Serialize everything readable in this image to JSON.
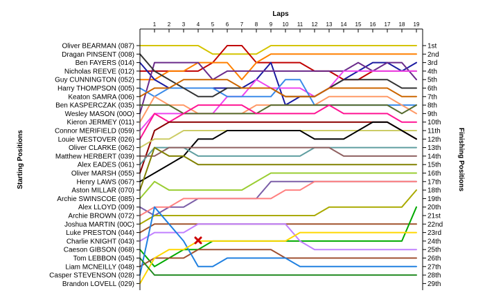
{
  "chart_data": {
    "type": "line",
    "title": "",
    "xlabel": "Laps",
    "ylabel_left": "Starting Positions",
    "ylabel_right": "Finishing Positions",
    "laps": [
      1,
      2,
      3,
      4,
      5,
      6,
      7,
      8,
      9,
      10,
      11,
      12,
      13,
      14,
      15,
      16,
      17,
      18,
      19
    ],
    "starting_grid": [
      "Oliver BEARMAN (087)",
      "Dragan PINSENT (008)",
      "Ben FAYERS (014)",
      "Nicholas REEVE (012)",
      "Guy CUNNINGTON (052)",
      "Harry THOMPSON (005)",
      "Keaton SAMRA (006)",
      "Ben KASPERCZAK (035)",
      "Wesley MASON (00O)",
      "Kieron JERMEY (011)",
      "Connor MERIFIELD (059)",
      "Louie WESTOVER (026)",
      "Oliver CLARKE (062)",
      "Matthew HERBERT (039)",
      "Alex EADES (061)",
      "Oliver MARSH (055)",
      "Henry LAWS (067)",
      "Aston MILLAR (070)",
      "Archie SWINSCOE (085)",
      "Alex LLOYD (009)",
      "Archie BROWN (072)",
      "Joshua MARTIN (00C)",
      "Luke PRESTON (044)",
      "Charlie KNIGHT (043)",
      "Caeson GIBSON (068)",
      "Tom LEBBON (045)",
      "Liam MCNEILLY (048)",
      "Casper STEVENSON (028)",
      "Brandon LOVELL (029)"
    ],
    "finishing_positions": [
      "1st",
      "2nd",
      "3rd",
      "4th",
      "5th",
      "6th",
      "7th",
      "8th",
      "9th",
      "10th",
      "11th",
      "12th",
      "13th",
      "14th",
      "15th",
      "16th",
      "17th",
      "18th",
      "19th",
      "20th",
      "21st",
      "22nd",
      "23rd",
      "24th",
      "25th",
      "26th",
      "27th",
      "28th",
      "29th"
    ],
    "retirement_marker": {
      "lap": 4,
      "position": 24
    },
    "series": [
      {
        "color": "#d4c400",
        "positions": [
          1,
          1,
          1,
          1,
          1,
          2,
          2,
          2,
          2,
          1,
          1,
          1,
          1,
          1,
          1,
          1,
          1,
          1,
          1,
          1
        ]
      },
      {
        "color": "#c00000",
        "positions": [
          4,
          4,
          4,
          4,
          4,
          3,
          1,
          1,
          3,
          3,
          3,
          3,
          4,
          4,
          5,
          5,
          4,
          4,
          4,
          4
        ]
      },
      {
        "color": "#ff8000",
        "positions": [
          5,
          5,
          4,
          4,
          3,
          3,
          3,
          5,
          3,
          2,
          2,
          2,
          2,
          2,
          2,
          2,
          2,
          2,
          2,
          2
        ]
      },
      {
        "color": "#1a1aa0",
        "positions": [
          3,
          5,
          6,
          6,
          6,
          6,
          6,
          6,
          5,
          3,
          8,
          7,
          7,
          6,
          5,
          4,
          3,
          3,
          4,
          3
        ]
      },
      {
        "color": "#6a2a8a",
        "positions": [
          9,
          3,
          3,
          3,
          3,
          5,
          4,
          4,
          4,
          4,
          4,
          4,
          4,
          4,
          4,
          3,
          4,
          3,
          3,
          5
        ]
      },
      {
        "color": "#ee44ee",
        "positions": [
          11,
          9,
          9,
          9,
          9,
          9,
          7,
          7,
          5,
          6,
          6,
          6,
          7,
          6,
          4,
          4,
          4,
          4,
          4,
          4
        ]
      },
      {
        "color": "#3a8ae8",
        "positions": [
          6,
          7,
          6,
          6,
          6,
          6,
          7,
          7,
          7,
          7,
          5,
          5,
          8,
          8,
          8,
          8,
          8,
          8,
          8,
          8
        ]
      },
      {
        "color": "#333333",
        "positions": [
          2,
          4,
          5,
          6,
          7,
          7,
          6,
          6,
          6,
          6,
          7,
          7,
          7,
          6,
          5,
          5,
          5,
          5,
          6,
          6
        ]
      },
      {
        "color": "#cc6600",
        "positions": [
          7,
          6,
          6,
          5,
          5,
          5,
          5,
          6,
          6,
          6,
          7,
          7,
          7,
          6,
          6,
          6,
          6,
          6,
          7,
          7
        ]
      },
      {
        "color": "#ff9966",
        "positions": [
          10,
          7,
          8,
          8,
          9,
          9,
          9,
          9,
          8,
          8,
          8,
          8,
          8,
          7,
          7,
          7,
          7,
          7,
          8,
          9
        ]
      },
      {
        "color": "#556b2f",
        "positions": [
          8,
          8,
          8,
          9,
          9,
          9,
          9,
          9,
          9,
          8,
          8,
          8,
          8,
          8,
          8,
          8,
          8,
          8,
          9,
          8
        ]
      },
      {
        "color": "#ff1493",
        "positions": [
          12,
          9,
          10,
          9,
          8,
          8,
          8,
          8,
          9,
          9,
          9,
          9,
          9,
          8,
          9,
          9,
          9,
          9,
          10,
          10
        ]
      },
      {
        "color": "#8b0000",
        "positions": [
          16,
          11,
          10,
          10,
          10,
          10,
          10,
          10,
          10,
          10,
          10,
          10,
          10,
          10,
          10,
          10,
          10,
          10,
          11,
          12
        ]
      },
      {
        "color": "#cccc66",
        "positions": [
          13,
          12,
          12,
          11,
          11,
          11,
          11,
          11,
          11,
          11,
          11,
          11,
          11,
          11,
          11,
          11,
          11,
          11,
          11,
          11
        ]
      },
      {
        "color": "#000000",
        "positions": [
          17,
          16,
          15,
          14,
          12,
          12,
          11,
          11,
          11,
          11,
          11,
          11,
          12,
          12,
          12,
          11,
          10,
          10,
          11,
          12
        ]
      },
      {
        "color": "#5f9ea0",
        "positions": [
          15,
          13,
          13,
          13,
          14,
          14,
          14,
          14,
          14,
          14,
          14,
          14,
          13,
          13,
          13,
          13,
          13,
          13,
          13,
          13
        ]
      },
      {
        "color": "#8f6060",
        "positions": [
          14,
          14,
          13,
          13,
          13,
          13,
          13,
          13,
          13,
          13,
          13,
          13,
          13,
          13,
          14,
          14,
          14,
          14,
          14,
          14
        ]
      },
      {
        "color": "#808000",
        "positions": [
          18,
          13,
          14,
          14,
          15,
          15,
          15,
          15,
          15,
          15,
          15,
          15,
          15,
          15,
          15,
          15,
          15,
          15,
          15,
          15
        ]
      },
      {
        "color": "#9acd32",
        "positions": [
          19,
          17,
          18,
          18,
          18,
          18,
          18,
          18,
          17,
          16,
          16,
          16,
          16,
          16,
          16,
          16,
          16,
          16,
          16,
          16
        ]
      },
      {
        "color": "#7b5ea7",
        "positions": [
          20,
          21,
          20,
          20,
          19,
          19,
          19,
          19,
          19,
          17,
          17,
          17,
          17,
          17,
          17,
          17,
          17,
          17,
          17,
          17
        ]
      },
      {
        "color": "#ff8080",
        "positions": [
          21,
          20,
          20,
          19,
          19,
          19,
          19,
          19,
          19,
          19,
          18,
          18,
          17,
          17,
          17,
          17,
          17,
          17,
          17,
          17
        ]
      },
      {
        "color": "#aaaa00",
        "positions": [
          22,
          21,
          21,
          21,
          21,
          21,
          21,
          21,
          21,
          21,
          21,
          21,
          21,
          20,
          20,
          20,
          20,
          20,
          20,
          18
        ]
      },
      {
        "color": "#a0522d",
        "positions": [
          23,
          22,
          22,
          22,
          22,
          22,
          22,
          22,
          22,
          22,
          22,
          22,
          22,
          22,
          22,
          22,
          22,
          22,
          22,
          22
        ]
      },
      {
        "color": "#00aa00",
        "positions": [
          25,
          27,
          26,
          25,
          25,
          24,
          24,
          24,
          24,
          24,
          24,
          24,
          24,
          24,
          24,
          24,
          24,
          24,
          24,
          20
        ]
      },
      {
        "color": "#c080ff",
        "positions": [
          24,
          23,
          23,
          23,
          22,
          22,
          22,
          22,
          22,
          22,
          22,
          24,
          25,
          25,
          25,
          25,
          25,
          25,
          25,
          25
        ]
      },
      {
        "color": "#a05030",
        "positions": [
          27,
          26,
          26,
          26,
          25,
          25,
          25,
          25,
          25,
          25,
          26,
          26,
          26,
          26,
          26,
          26,
          26,
          26,
          26,
          26
        ]
      },
      {
        "color": "#2080e0",
        "positions": [
          28,
          20,
          22,
          24,
          27,
          27,
          26,
          26,
          26,
          26,
          26,
          27,
          27,
          27,
          27,
          27,
          27,
          27,
          27,
          27
        ]
      },
      {
        "color": "#ffd700",
        "positions": [
          29,
          26,
          25,
          25,
          24,
          24,
          24,
          24,
          24,
          24,
          24,
          23,
          23,
          23,
          23,
          23,
          23,
          23,
          23,
          23
        ]
      },
      {
        "color": "#228b22",
        "positions": [
          26,
          28,
          28,
          28,
          28,
          28,
          28,
          28,
          28,
          28,
          28,
          28,
          28,
          28,
          28,
          28,
          28,
          28,
          28,
          28
        ]
      }
    ]
  }
}
